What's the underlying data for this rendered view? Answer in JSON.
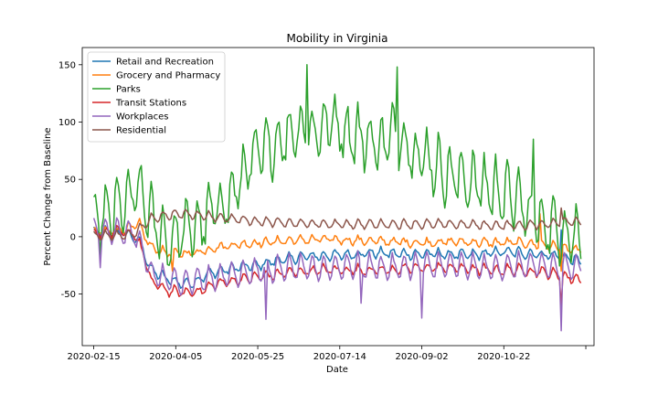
{
  "chart_data": {
    "type": "line",
    "title": "Mobility in Virginia",
    "xlabel": "Date",
    "ylabel": "Percent Change from Baseline",
    "x_start": "2020-02-15",
    "x_end": "2020-12-08",
    "xlim": [
      "2020-02-08",
      "2020-12-16"
    ],
    "ylim": [
      -95,
      165
    ],
    "x_ticks": [
      "2020-02-15",
      "2020-04-05",
      "2020-05-25",
      "2020-07-14",
      "2020-09-02",
      "2020-10-22",
      ""
    ],
    "x_tick_dates": [
      "2020-02-15",
      "2020-04-05",
      "2020-05-25",
      "2020-07-14",
      "2020-09-02",
      "2020-10-22",
      "2020-12-11"
    ],
    "y_ticks": [
      -50,
      0,
      50,
      100,
      150
    ],
    "grid": false,
    "legend_position": "top-left",
    "series": [
      {
        "name": "Retail and Recreation",
        "color": "#1f77b4",
        "keypoints": [
          [
            0,
            3
          ],
          [
            10,
            3
          ],
          [
            20,
            2
          ],
          [
            28,
            -5
          ],
          [
            35,
            -30
          ],
          [
            45,
            -38
          ],
          [
            55,
            -42
          ],
          [
            62,
            -40
          ],
          [
            70,
            -33
          ],
          [
            80,
            -30
          ],
          [
            90,
            -27
          ],
          [
            100,
            -26
          ],
          [
            110,
            -22
          ],
          [
            130,
            -18
          ],
          [
            150,
            -17
          ],
          [
            170,
            -15
          ],
          [
            190,
            -16
          ],
          [
            210,
            -16
          ],
          [
            230,
            -17
          ],
          [
            250,
            -14
          ],
          [
            270,
            -16
          ],
          [
            285,
            -18
          ],
          [
            295,
            -22
          ]
        ],
        "weekly_amp": 5,
        "noise": 2,
        "spikes": [
          [
            272,
            -14
          ],
          [
            285,
            6
          ]
        ]
      },
      {
        "name": "Grocery and Pharmacy",
        "color": "#ff7f0e",
        "keypoints": [
          [
            0,
            3
          ],
          [
            15,
            5
          ],
          [
            25,
            8
          ],
          [
            28,
            10
          ],
          [
            31,
            0
          ],
          [
            35,
            -10
          ],
          [
            45,
            -15
          ],
          [
            60,
            -15
          ],
          [
            75,
            -10
          ],
          [
            85,
            -8
          ],
          [
            100,
            -6
          ],
          [
            120,
            -4
          ],
          [
            140,
            -3
          ],
          [
            160,
            -4
          ],
          [
            180,
            -5
          ],
          [
            200,
            -6
          ],
          [
            220,
            -5
          ],
          [
            240,
            -6
          ],
          [
            260,
            -6
          ],
          [
            275,
            -8
          ],
          [
            285,
            -10
          ],
          [
            295,
            -13
          ]
        ],
        "weekly_amp": 4,
        "noise": 2,
        "spikes": [
          [
            48,
            -30
          ],
          [
            272,
            20
          ],
          [
            285,
            -30
          ]
        ]
      },
      {
        "name": "Parks",
        "color": "#2ca02c",
        "keypoints": [
          [
            0,
            5
          ],
          [
            10,
            15
          ],
          [
            20,
            25
          ],
          [
            28,
            35
          ],
          [
            35,
            10
          ],
          [
            45,
            -10
          ],
          [
            55,
            0
          ],
          [
            65,
            5
          ],
          [
            75,
            20
          ],
          [
            85,
            30
          ],
          [
            95,
            60
          ],
          [
            105,
            70
          ],
          [
            115,
            80
          ],
          [
            125,
            90
          ],
          [
            135,
            85
          ],
          [
            145,
            95
          ],
          [
            155,
            85
          ],
          [
            165,
            80
          ],
          [
            175,
            75
          ],
          [
            185,
            85
          ],
          [
            195,
            70
          ],
          [
            205,
            60
          ],
          [
            215,
            50
          ],
          [
            225,
            45
          ],
          [
            235,
            40
          ],
          [
            245,
            35
          ],
          [
            255,
            30
          ],
          [
            265,
            15
          ],
          [
            275,
            5
          ],
          [
            285,
            0
          ],
          [
            295,
            -5
          ]
        ],
        "weekly_amp": 30,
        "noise": 10,
        "spikes": [
          [
            130,
            150
          ],
          [
            185,
            148
          ],
          [
            268,
            85
          ]
        ]
      },
      {
        "name": "Transit Stations",
        "color": "#d62728",
        "keypoints": [
          [
            0,
            2
          ],
          [
            15,
            3
          ],
          [
            25,
            2
          ],
          [
            30,
            -15
          ],
          [
            35,
            -40
          ],
          [
            45,
            -48
          ],
          [
            55,
            -50
          ],
          [
            65,
            -48
          ],
          [
            75,
            -42
          ],
          [
            90,
            -38
          ],
          [
            105,
            -35
          ],
          [
            120,
            -32
          ],
          [
            140,
            -30
          ],
          [
            160,
            -30
          ],
          [
            180,
            -30
          ],
          [
            200,
            -28
          ],
          [
            220,
            -28
          ],
          [
            240,
            -30
          ],
          [
            260,
            -30
          ],
          [
            275,
            -32
          ],
          [
            285,
            -35
          ],
          [
            295,
            -38
          ]
        ],
        "weekly_amp": 5,
        "noise": 2,
        "spikes": [
          [
            285,
            -60
          ]
        ]
      },
      {
        "name": "Workplaces",
        "color": "#9467bd",
        "keypoints": [
          [
            0,
            2
          ],
          [
            15,
            2
          ],
          [
            25,
            0
          ],
          [
            30,
            -15
          ],
          [
            35,
            -35
          ],
          [
            45,
            -40
          ],
          [
            55,
            -42
          ],
          [
            65,
            -40
          ],
          [
            75,
            -38
          ],
          [
            90,
            -34
          ],
          [
            105,
            -32
          ],
          [
            120,
            -30
          ],
          [
            140,
            -30
          ],
          [
            160,
            -28
          ],
          [
            180,
            -30
          ],
          [
            200,
            -28
          ],
          [
            220,
            -28
          ],
          [
            240,
            -30
          ],
          [
            260,
            -28
          ],
          [
            275,
            -28
          ],
          [
            285,
            -30
          ],
          [
            295,
            -28
          ]
        ],
        "weekly_amp": 14,
        "noise": 2,
        "spikes": [
          [
            4,
            -27
          ],
          [
            105,
            -72
          ],
          [
            163,
            -58
          ],
          [
            200,
            -71
          ],
          [
            285,
            -82
          ]
        ]
      },
      {
        "name": "Residential",
        "color": "#8c564b",
        "keypoints": [
          [
            0,
            0
          ],
          [
            15,
            0
          ],
          [
            25,
            2
          ],
          [
            30,
            8
          ],
          [
            35,
            15
          ],
          [
            45,
            18
          ],
          [
            55,
            19
          ],
          [
            65,
            18
          ],
          [
            75,
            16
          ],
          [
            90,
            14
          ],
          [
            105,
            12
          ],
          [
            120,
            11
          ],
          [
            140,
            10
          ],
          [
            160,
            10
          ],
          [
            180,
            10
          ],
          [
            200,
            10
          ],
          [
            220,
            10
          ],
          [
            240,
            9
          ],
          [
            260,
            9
          ],
          [
            275,
            10
          ],
          [
            285,
            12
          ],
          [
            295,
            12
          ]
        ],
        "weekly_amp": 5,
        "noise": 1,
        "spikes": [
          [
            285,
            25
          ]
        ]
      }
    ]
  }
}
